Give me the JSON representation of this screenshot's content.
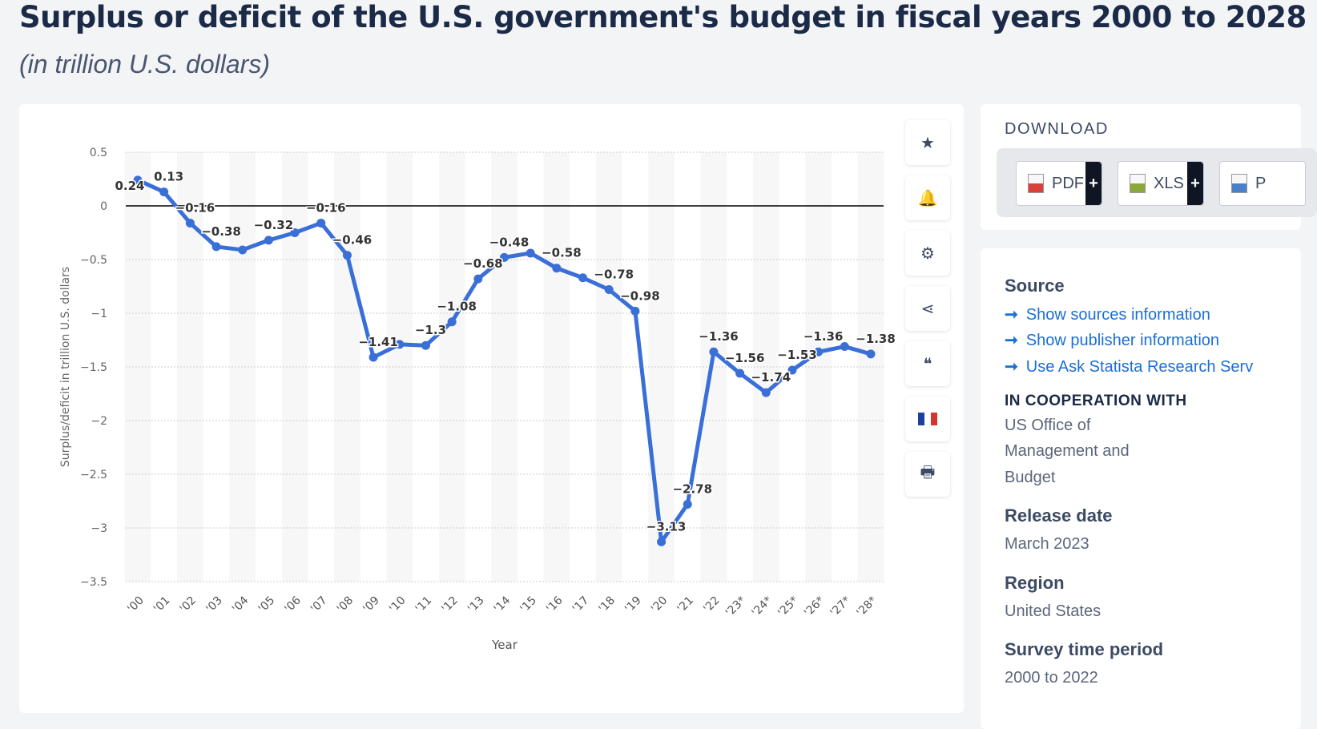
{
  "title": "Surplus or deficit of the U.S. government's budget in fiscal years 2000 to 2028",
  "subtitle": "(in trillion U.S. dollars)",
  "toolbar": [
    {
      "icon": "star-icon",
      "glyph": "★"
    },
    {
      "icon": "bell-icon",
      "glyph": "🔔"
    },
    {
      "icon": "gear-icon",
      "glyph": "⚙"
    },
    {
      "icon": "share-icon",
      "glyph": "⋖"
    },
    {
      "icon": "quote-icon",
      "glyph": "❝"
    },
    {
      "icon": "flag-icon",
      "glyph": ""
    },
    {
      "icon": "print-icon",
      "glyph": "🖶"
    }
  ],
  "download": {
    "title": "DOWNLOAD",
    "buttons": [
      {
        "label": "PDF",
        "color": "#d9403a"
      },
      {
        "label": "XLS",
        "color": "#8aa83c"
      },
      {
        "label": "P",
        "color": "#4a7fc9"
      }
    ],
    "plus": "+"
  },
  "info": {
    "source_heading": "Source",
    "links": [
      "Show sources information",
      "Show publisher information",
      "Use Ask Statista Research Serv"
    ],
    "arrow": "➞",
    "coop_heading": "IN COOPERATION WITH",
    "coop_lines": [
      "US Office of",
      "Management and",
      "Budget"
    ],
    "release_heading": "Release date",
    "release_value": "March 2023",
    "region_heading": "Region",
    "region_value": "United States",
    "period_heading": "Survey time period",
    "period_value": "2000 to 2022"
  },
  "chart_data": {
    "type": "line",
    "xlabel": "Year",
    "ylabel": "Surplus/deficit in trillion U.S. dollars",
    "ylim": [
      -3.5,
      0.5
    ],
    "yticks": [
      0.5,
      0,
      -0.5,
      -1,
      -1.5,
      -2,
      -2.5,
      -3,
      -3.5
    ],
    "grid": true,
    "color": "#3a6fd8",
    "categories": [
      "'00",
      "'01",
      "'02",
      "'03",
      "'04",
      "'05",
      "'06",
      "'07",
      "'08",
      "'09",
      "'10",
      "'11",
      "'12",
      "'13",
      "'14",
      "'15",
      "'16",
      "'17",
      "'18",
      "'19",
      "'20",
      "'21",
      "'22",
      "'23*",
      "'24*",
      "'25*",
      "'26*",
      "'27*",
      "'28*"
    ],
    "values": [
      0.24,
      0.13,
      -0.16,
      -0.38,
      -0.41,
      -0.32,
      -0.25,
      -0.16,
      -0.46,
      -1.41,
      -1.29,
      -1.3,
      -1.08,
      -0.68,
      -0.48,
      -0.44,
      -0.58,
      -0.67,
      -0.78,
      -0.98,
      -3.13,
      -2.78,
      -1.36,
      -1.56,
      -1.74,
      -1.53,
      -1.36,
      -1.31,
      -1.38
    ],
    "data_labels": [
      "0.24",
      "0.13",
      "-0.16",
      "-0.38",
      "",
      "-0.32",
      "",
      "-0.16",
      "-0.46",
      "-1.41",
      "",
      "-1.3",
      "-1.08",
      "-0.68",
      "-0.48",
      "",
      "-0.58",
      "",
      "-0.78",
      "-0.98",
      "-3.13",
      "-2.78",
      "-1.36",
      "-1.56",
      "-1.74",
      "-1.53",
      "-1.36",
      "",
      "-1.38"
    ]
  }
}
